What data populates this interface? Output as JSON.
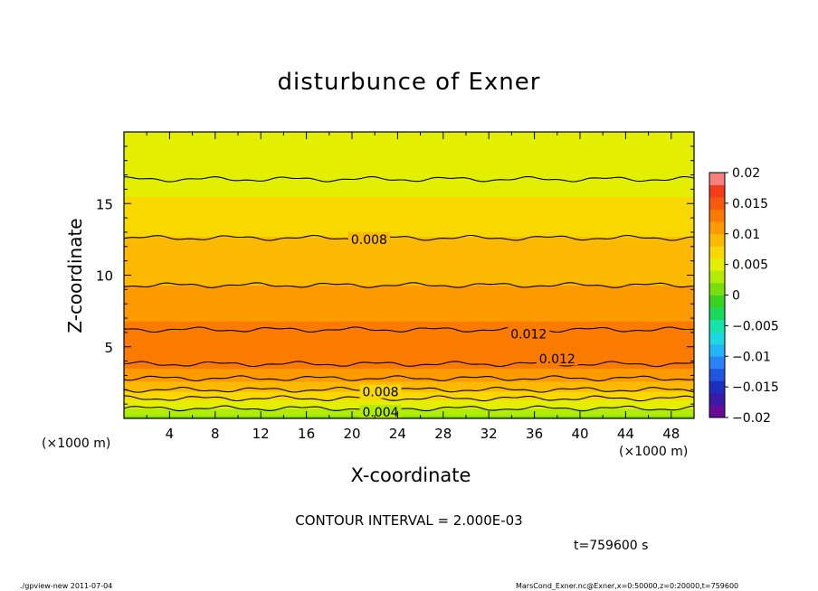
{
  "title": "disturbunce of Exner",
  "xlabel": "X-coordinate",
  "ylabel": "Z-coordinate",
  "x_unit": "(×1000 m)",
  "contour_interval": "CONTOUR INTERVAL = 2.000E-03",
  "time_label": "t=759600 s",
  "footer_left": "./gpview-new   2011-07-04",
  "footer_right": "MarsCond_Exner.nc@Exner,x=0:50000,z=0:20000,t=759600",
  "chart_data": {
    "type": "heatmap",
    "title": "disturbunce of Exner",
    "xlabel": "X-coordinate",
    "ylabel": "Z-coordinate",
    "xlim": [
      0,
      50
    ],
    "ylim": [
      0,
      20
    ],
    "x_ticks": [
      4,
      8,
      12,
      16,
      20,
      24,
      28,
      32,
      36,
      40,
      44,
      48
    ],
    "y_ticks": [
      5,
      10,
      15
    ],
    "x_units": "(×1000 m)",
    "contour_interval": 0.002,
    "colorbar": {
      "min": -0.02,
      "max": 0.02,
      "ticks": [
        "0.02",
        "0.015",
        "0.01",
        "0.005",
        "0",
        "−0.005",
        "−0.01",
        "−0.015",
        "−0.02"
      ],
      "colors": [
        "#6a0a9a",
        "#3c1aa8",
        "#1c2ebf",
        "#1f56e0",
        "#2a82f5",
        "#22b4f8",
        "#1ed8df",
        "#16e3a8",
        "#1cd95c",
        "#36d420",
        "#79dd10",
        "#b2ec06",
        "#e4ee00",
        "#f8d800",
        "#fbb900",
        "#fc9a00",
        "#fb7a00",
        "#f75a0c",
        "#f33c18",
        "#f5807e"
      ]
    },
    "field_profile": {
      "z": [
        0,
        0.6,
        1.2,
        1.8,
        2.4,
        3.0,
        3.6,
        4.4,
        5.2,
        6.0,
        7.0,
        8.0,
        9.0,
        10.0,
        11.0,
        12.0,
        13.0,
        14.0,
        15.0,
        16.0,
        17.0,
        18.0,
        20.0
      ],
      "value": [
        0.0015,
        0.0035,
        0.0055,
        0.0075,
        0.0095,
        0.0112,
        0.0122,
        0.0129,
        0.013,
        0.0127,
        0.0118,
        0.011,
        0.0102,
        0.0096,
        0.009,
        0.0084,
        0.0078,
        0.007,
        0.0063,
        0.0057,
        0.005,
        0.0046,
        0.004
      ]
    },
    "contours": [
      {
        "level": "0.004",
        "z": 0.7
      },
      {
        "level": "0.006",
        "z": 1.4
      },
      {
        "level": "0.008",
        "z": 2.0
      },
      {
        "level": "0.010",
        "z": 2.8
      },
      {
        "level": "0.012",
        "z": 3.8
      },
      {
        "level": "0.012",
        "z": 6.2
      },
      {
        "level": "0.010",
        "z": 9.3
      },
      {
        "level": "0.008",
        "z": 12.6
      },
      {
        "level": "0.006",
        "z": 16.7
      }
    ],
    "contour_labels": [
      {
        "text": "0.004",
        "x": 22.5,
        "z": 0.45
      },
      {
        "text": "0.008",
        "x": 22.5,
        "z": 1.85
      },
      {
        "text": "0.012",
        "x": 38,
        "z": 4.15
      },
      {
        "text": "0.012",
        "x": 35.5,
        "z": 5.9
      },
      {
        "text": "0.008",
        "x": 21.5,
        "z": 12.5
      }
    ]
  }
}
